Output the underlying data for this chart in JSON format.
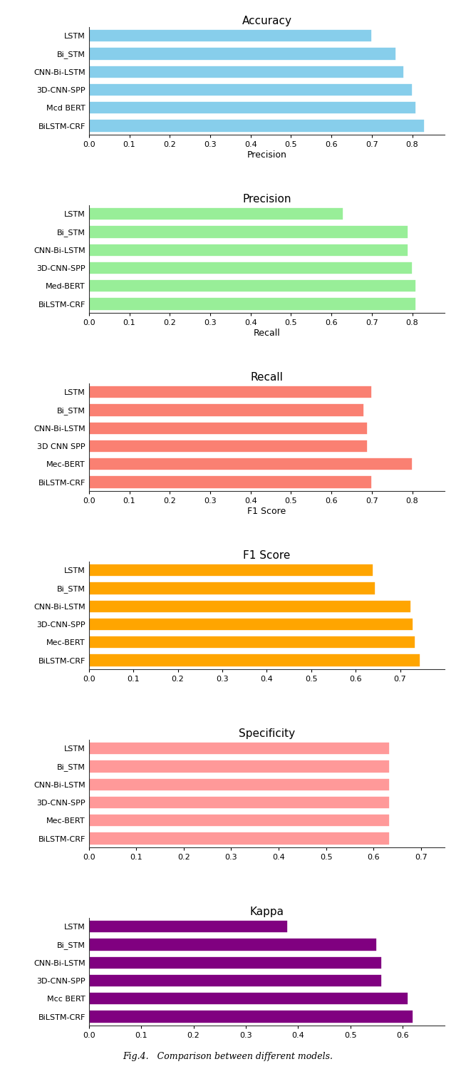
{
  "charts": [
    {
      "title": "Accuracy",
      "xlabel": "Precision",
      "color": "#87CEEB",
      "models": [
        "BiLSTM-CRF",
        "Mcd BERT",
        "3D-CNN-SPP",
        "CNN-Bi-LSTM",
        "Bi_STM",
        "LSTM"
      ],
      "values": [
        0.83,
        0.81,
        0.8,
        0.78,
        0.76,
        0.7
      ],
      "xlim": [
        0.0,
        0.88
      ],
      "xticks": [
        0.0,
        0.1,
        0.2,
        0.3,
        0.4,
        0.5,
        0.6,
        0.7,
        0.8
      ]
    },
    {
      "title": "Precision",
      "xlabel": "Recall",
      "color": "#98EE98",
      "models": [
        "BiLSTM-CRF",
        "Med-BERT",
        "3D-CNN-SPP",
        "CNN-Bi-LSTM",
        "Bi_STM",
        "LSTM"
      ],
      "values": [
        0.81,
        0.81,
        0.8,
        0.79,
        0.79,
        0.63
      ],
      "xlim": [
        0.0,
        0.88
      ],
      "xticks": [
        0.0,
        0.1,
        0.2,
        0.3,
        0.4,
        0.5,
        0.6,
        0.7,
        0.8
      ]
    },
    {
      "title": "Recall",
      "xlabel": "F1 Score",
      "color": "#FA8072",
      "models": [
        "BiLSTM-CRF",
        "Mec-BERT",
        "3D CNN SPP",
        "CNN-Bi-LSTM",
        "Bi_STM",
        "LSTM"
      ],
      "values": [
        0.7,
        0.8,
        0.69,
        0.69,
        0.68,
        0.7
      ],
      "xlim": [
        0.0,
        0.88
      ],
      "xticks": [
        0.0,
        0.1,
        0.2,
        0.3,
        0.4,
        0.5,
        0.6,
        0.7,
        0.8
      ]
    },
    {
      "title": "F1 Score",
      "xlabel": "",
      "color": "#FFA500",
      "models": [
        "BiLSTM-CRF",
        "Mec-BERT",
        "3D-CNN-SPP",
        "CNN-Bi-LSTM",
        "Bi_STM",
        "LSTM"
      ],
      "values": [
        0.745,
        0.735,
        0.73,
        0.725,
        0.645,
        0.64
      ],
      "xlim": [
        0.0,
        0.8
      ],
      "xticks": [
        0.0,
        0.1,
        0.2,
        0.3,
        0.4,
        0.5,
        0.6,
        0.7
      ]
    },
    {
      "title": "Specificity",
      "xlabel": "",
      "color": "#FF9999",
      "models": [
        "BiLSTM-CRF",
        "Mec-BERT",
        "3D-CNN-SPP",
        "CNN-Bi-LSTM",
        "Bi_STM",
        "LSTM"
      ],
      "values": [
        0.635,
        0.635,
        0.635,
        0.635,
        0.635,
        0.635
      ],
      "xlim": [
        0.0,
        0.75
      ],
      "xticks": [
        0.0,
        0.1,
        0.2,
        0.3,
        0.4,
        0.5,
        0.6,
        0.7
      ]
    },
    {
      "title": "Kappa",
      "xlabel": "",
      "color": "#800080",
      "models": [
        "BiLSTM-CRF",
        "Mcc BERT",
        "3D-CNN-SPP",
        "CNN-Bi-LSTM",
        "Bi_STM",
        "LSTM"
      ],
      "values": [
        0.62,
        0.61,
        0.56,
        0.56,
        0.55,
        0.38
      ],
      "xlim": [
        0.0,
        0.68
      ],
      "xticks": [
        0.0,
        0.1,
        0.2,
        0.3,
        0.4,
        0.5,
        0.6
      ]
    }
  ],
  "fig_caption": "Fig.4.   Comparison between different models.",
  "background_color": "#ffffff",
  "bar_height": 0.72,
  "title_fontsize": 11,
  "tick_fontsize": 8,
  "ylabel_fontsize": 8,
  "xlabel_fontsize": 9
}
